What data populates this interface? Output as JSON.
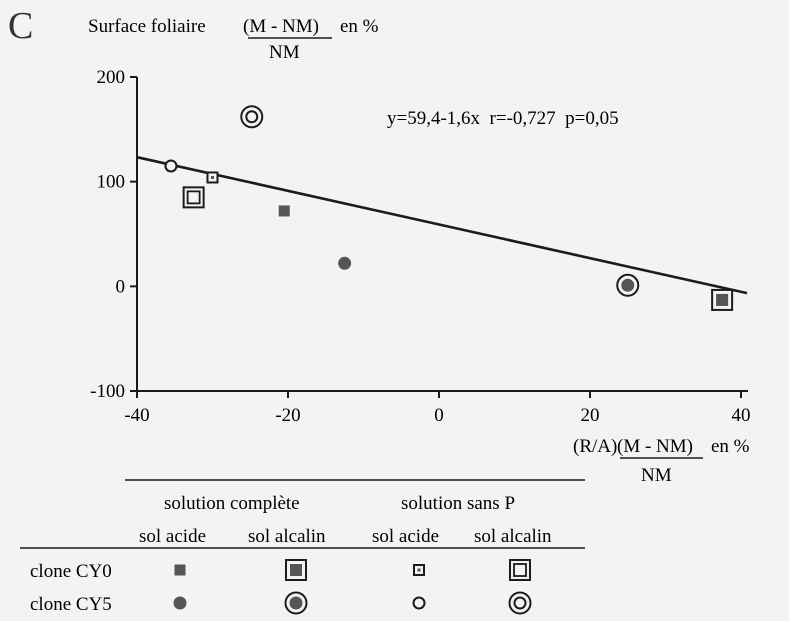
{
  "panel_letter": "C",
  "chart_data": {
    "type": "scatter",
    "ylabel": {
      "prefix": "Surface foliaire",
      "numerator": "(M - NM)",
      "suffix": "en %",
      "denominator": "NM"
    },
    "xlabel": {
      "prefix": "(R/A)",
      "numerator": "(M - NM)",
      "suffix": "en %",
      "denominator": "NM"
    },
    "xlim": [
      -40,
      40
    ],
    "ylim": [
      -100,
      200
    ],
    "x_ticks": [
      -40,
      -20,
      0,
      20,
      40
    ],
    "y_ticks": [
      200,
      100,
      0,
      -100
    ],
    "x_tick_labels": [
      "-40",
      "-20",
      "0",
      "20",
      "40"
    ],
    "y_tick_labels": [
      "200",
      "100",
      "0",
      "-100"
    ],
    "grid": false,
    "regression": {
      "intercept": 59.4,
      "slope": -1.6,
      "x_range": [
        -40,
        40
      ],
      "label": "y=59,4-1,6x  r=-0,727  p=0,05"
    },
    "series": [
      {
        "clone": "CY0",
        "solution": "solution complète",
        "sol": "sol acide",
        "marker": "filled-square-small",
        "points": [
          [
            -20.5,
            72
          ]
        ]
      },
      {
        "clone": "CY0",
        "solution": "solution complète",
        "sol": "sol alcalin",
        "marker": "filled-square-framed",
        "points": [
          [
            37.5,
            -13
          ]
        ]
      },
      {
        "clone": "CY0",
        "solution": "solution sans P",
        "sol": "sol acide",
        "marker": "open-square-small",
        "points": [
          [
            -30,
            104
          ]
        ]
      },
      {
        "clone": "CY0",
        "solution": "solution sans P",
        "sol": "sol alcalin",
        "marker": "open-square-framed",
        "points": [
          [
            -32.5,
            85
          ]
        ]
      },
      {
        "clone": "CY5",
        "solution": "solution complète",
        "sol": "sol acide",
        "marker": "filled-circle-small",
        "points": [
          [
            -12.5,
            22
          ]
        ]
      },
      {
        "clone": "CY5",
        "solution": "solution complète",
        "sol": "sol alcalin",
        "marker": "filled-circle-ringed",
        "points": [
          [
            25,
            1
          ]
        ]
      },
      {
        "clone": "CY5",
        "solution": "solution sans P",
        "sol": "sol acide",
        "marker": "open-circle-small",
        "points": [
          [
            -35.5,
            115
          ]
        ]
      },
      {
        "clone": "CY5",
        "solution": "solution sans P",
        "sol": "sol alcalin",
        "marker": "open-circle-ringed",
        "points": [
          [
            -24.8,
            162
          ]
        ]
      }
    ]
  },
  "legend_table": {
    "group_headers": [
      "solution complète",
      "solution sans P"
    ],
    "sub_headers": [
      "sol acide",
      "sol alcalin",
      "sol acide",
      "sol alcalin"
    ],
    "rows": [
      {
        "label": "clone CY0",
        "markers": [
          "filled-square-small",
          "filled-square-framed",
          "open-square-small",
          "open-square-framed"
        ]
      },
      {
        "label": "clone CY5",
        "markers": [
          "filled-circle-small",
          "filled-circle-ringed",
          "open-circle-small",
          "open-circle-ringed"
        ]
      }
    ]
  }
}
